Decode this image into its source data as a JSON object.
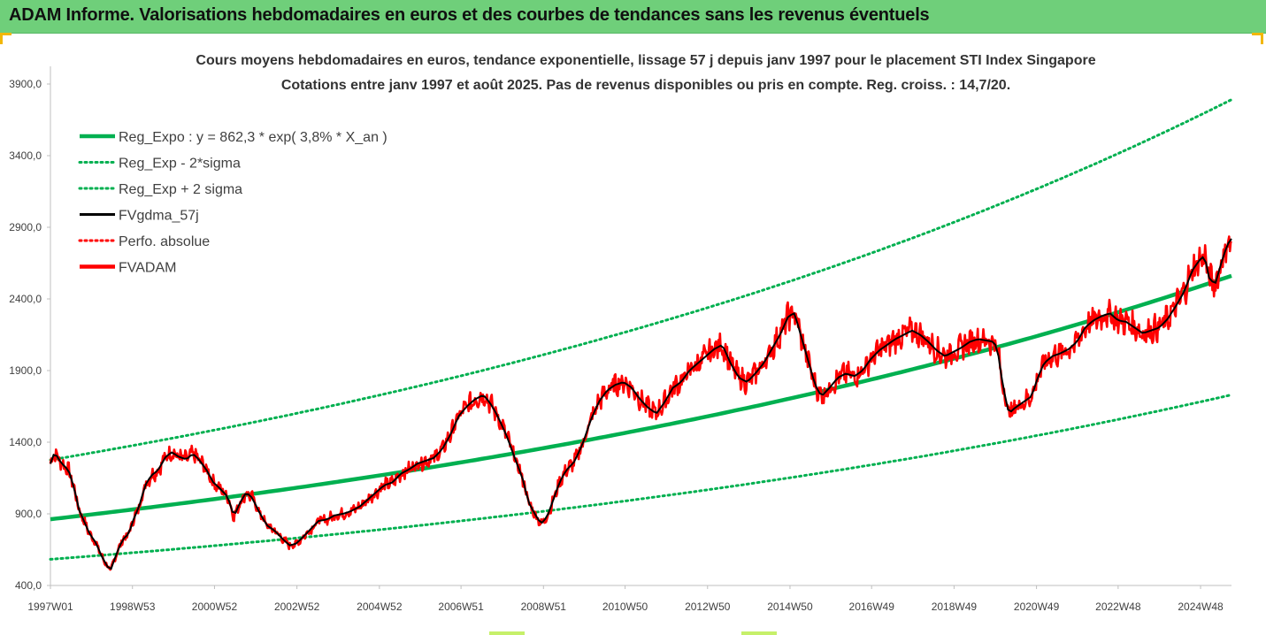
{
  "header": {
    "title": "ADAM Informe. Valorisations hebdomadaires en euros et des courbes de tendances sans les revenus éventuels"
  },
  "chart_data": {
    "type": "line",
    "title": "Cours moyens hebdomadaires en euros, tendance exponentielle, lissage 57 j depuis janv 1997 pour le placement STI Index Singapore",
    "subtitle": "Cotations entre janv 1997 et août 2025. Pas de revenus disponibles ou pris en compte. Reg. croiss. : 14,7/20.",
    "xlabel": "",
    "ylabel": "",
    "ylim": [
      400,
      3900
    ],
    "xlim": [
      1997.0,
      2025.65
    ],
    "yticks": [
      "400,0",
      "900,0",
      "1400,0",
      "1900,0",
      "2400,0",
      "2900,0",
      "3400,0",
      "3900,0"
    ],
    "xticks": [
      {
        "label": "1997W01",
        "x": 1997.0
      },
      {
        "label": "1998W53",
        "x": 1998.99
      },
      {
        "label": "2000W52",
        "x": 2000.98
      },
      {
        "label": "2002W52",
        "x": 2002.98
      },
      {
        "label": "2004W52",
        "x": 2004.98
      },
      {
        "label": "2006W51",
        "x": 2006.96
      },
      {
        "label": "2008W51",
        "x": 2008.96
      },
      {
        "label": "2010W50",
        "x": 2010.94
      },
      {
        "label": "2012W50",
        "x": 2012.94
      },
      {
        "label": "2014W50",
        "x": 2014.94
      },
      {
        "label": "2016W49",
        "x": 2016.92
      },
      {
        "label": "2018W49",
        "x": 2018.92
      },
      {
        "label": "2020W49",
        "x": 2020.92
      },
      {
        "label": "2022W48",
        "x": 2022.9
      },
      {
        "label": "2024W48",
        "x": 2024.9
      }
    ],
    "grid": false,
    "legend_position": "top-left",
    "regression": {
      "a": 862.3,
      "rate": 0.038,
      "sigma_factor": 1.48
    },
    "series": [
      {
        "name": "Reg_Expo : y = 862,3 * exp( 3,8% *  X_an )",
        "color": "#00b050",
        "style": "solid-thick",
        "kind": "reg"
      },
      {
        "name": "Reg_Exp - 2*sigma",
        "color": "#00b050",
        "style": "dotted",
        "kind": "low"
      },
      {
        "name": "Reg_Exp + 2 sigma",
        "color": "#00b050",
        "style": "dotted",
        "kind": "high"
      },
      {
        "name": "FVgdma_57j",
        "color": "#000000",
        "style": "solid",
        "kind": "smooth"
      },
      {
        "name": "Perfo. absolue",
        "color": "#ff0000",
        "style": "dotted",
        "kind": "perf"
      },
      {
        "name": "FVADAM",
        "color": "#ff0000",
        "style": "solid-thick",
        "kind": "price"
      }
    ],
    "price_points": [
      [
        1997.0,
        1250
      ],
      [
        1997.1,
        1330
      ],
      [
        1997.25,
        1260
      ],
      [
        1997.45,
        1200
      ],
      [
        1997.6,
        1050
      ],
      [
        1997.7,
        920
      ],
      [
        1997.8,
        860
      ],
      [
        1997.95,
        760
      ],
      [
        1998.1,
        700
      ],
      [
        1998.25,
        600
      ],
      [
        1998.45,
        500
      ],
      [
        1998.6,
        620
      ],
      [
        1998.75,
        720
      ],
      [
        1998.9,
        760
      ],
      [
        1999.0,
        850
      ],
      [
        1999.15,
        950
      ],
      [
        1999.3,
        1100
      ],
      [
        1999.45,
        1170
      ],
      [
        1999.6,
        1200
      ],
      [
        1999.8,
        1300
      ],
      [
        1999.95,
        1330
      ],
      [
        2000.1,
        1300
      ],
      [
        2000.3,
        1280
      ],
      [
        2000.45,
        1320
      ],
      [
        2000.6,
        1280
      ],
      [
        2000.8,
        1200
      ],
      [
        2000.95,
        1120
      ],
      [
        2001.1,
        1080
      ],
      [
        2001.3,
        1020
      ],
      [
        2001.45,
        880
      ],
      [
        2001.6,
        980
      ],
      [
        2001.75,
        1050
      ],
      [
        2001.9,
        1010
      ],
      [
        2002.05,
        920
      ],
      [
        2002.25,
        820
      ],
      [
        2002.45,
        780
      ],
      [
        2002.65,
        720
      ],
      [
        2002.8,
        680
      ],
      [
        2002.95,
        690
      ],
      [
        2003.1,
        730
      ],
      [
        2003.3,
        790
      ],
      [
        2003.5,
        850
      ],
      [
        2003.7,
        860
      ],
      [
        2003.9,
        890
      ],
      [
        2004.1,
        900
      ],
      [
        2004.3,
        920
      ],
      [
        2004.5,
        950
      ],
      [
        2004.7,
        1000
      ],
      [
        2004.9,
        1050
      ],
      [
        2005.1,
        1100
      ],
      [
        2005.3,
        1120
      ],
      [
        2005.5,
        1180
      ],
      [
        2005.7,
        1210
      ],
      [
        2005.9,
        1250
      ],
      [
        2006.1,
        1270
      ],
      [
        2006.3,
        1290
      ],
      [
        2006.5,
        1350
      ],
      [
        2006.7,
        1450
      ],
      [
        2006.9,
        1580
      ],
      [
        2007.1,
        1650
      ],
      [
        2007.3,
        1700
      ],
      [
        2007.5,
        1730
      ],
      [
        2007.65,
        1680
      ],
      [
        2007.8,
        1610
      ],
      [
        2007.95,
        1520
      ],
      [
        2008.1,
        1420
      ],
      [
        2008.25,
        1300
      ],
      [
        2008.45,
        1150
      ],
      [
        2008.6,
        980
      ],
      [
        2008.75,
        900
      ],
      [
        2008.9,
        830
      ],
      [
        2009.05,
        880
      ],
      [
        2009.2,
        1000
      ],
      [
        2009.35,
        1120
      ],
      [
        2009.5,
        1200
      ],
      [
        2009.7,
        1260
      ],
      [
        2009.9,
        1380
      ],
      [
        2010.1,
        1550
      ],
      [
        2010.3,
        1680
      ],
      [
        2010.5,
        1760
      ],
      [
        2010.7,
        1800
      ],
      [
        2010.9,
        1820
      ],
      [
        2011.1,
        1780
      ],
      [
        2011.3,
        1700
      ],
      [
        2011.5,
        1640
      ],
      [
        2011.7,
        1600
      ],
      [
        2011.9,
        1680
      ],
      [
        2012.1,
        1780
      ],
      [
        2012.3,
        1820
      ],
      [
        2012.5,
        1900
      ],
      [
        2012.7,
        1950
      ],
      [
        2012.9,
        2000
      ],
      [
        2013.1,
        2050
      ],
      [
        2013.3,
        2080
      ],
      [
        2013.5,
        1950
      ],
      [
        2013.7,
        1850
      ],
      [
        2013.9,
        1820
      ],
      [
        2014.1,
        1880
      ],
      [
        2014.3,
        1950
      ],
      [
        2014.5,
        2050
      ],
      [
        2014.7,
        2150
      ],
      [
        2014.9,
        2280
      ],
      [
        2015.05,
        2300
      ],
      [
        2015.2,
        2150
      ],
      [
        2015.4,
        1950
      ],
      [
        2015.55,
        1800
      ],
      [
        2015.7,
        1720
      ],
      [
        2015.9,
        1780
      ],
      [
        2016.1,
        1850
      ],
      [
        2016.3,
        1880
      ],
      [
        2016.5,
        1860
      ],
      [
        2016.7,
        1900
      ],
      [
        2016.9,
        1980
      ],
      [
        2017.1,
        2040
      ],
      [
        2017.3,
        2080
      ],
      [
        2017.5,
        2120
      ],
      [
        2017.7,
        2150
      ],
      [
        2017.9,
        2180
      ],
      [
        2018.1,
        2150
      ],
      [
        2018.3,
        2100
      ],
      [
        2018.5,
        2040
      ],
      [
        2018.7,
        2000
      ],
      [
        2018.9,
        2030
      ],
      [
        2019.1,
        2060
      ],
      [
        2019.3,
        2100
      ],
      [
        2019.5,
        2120
      ],
      [
        2019.7,
        2110
      ],
      [
        2019.9,
        2100
      ],
      [
        2020.0,
        2000
      ],
      [
        2020.1,
        1800
      ],
      [
        2020.25,
        1600
      ],
      [
        2020.4,
        1640
      ],
      [
        2020.6,
        1680
      ],
      [
        2020.8,
        1720
      ],
      [
        2020.95,
        1850
      ],
      [
        2021.1,
        1950
      ],
      [
        2021.3,
        2000
      ],
      [
        2021.5,
        2020
      ],
      [
        2021.7,
        2050
      ],
      [
        2021.9,
        2100
      ],
      [
        2022.1,
        2200
      ],
      [
        2022.3,
        2250
      ],
      [
        2022.5,
        2280
      ],
      [
        2022.7,
        2300
      ],
      [
        2022.9,
        2250
      ],
      [
        2023.1,
        2240
      ],
      [
        2023.3,
        2200
      ],
      [
        2023.5,
        2160
      ],
      [
        2023.7,
        2180
      ],
      [
        2023.9,
        2200
      ],
      [
        2024.1,
        2260
      ],
      [
        2024.3,
        2350
      ],
      [
        2024.5,
        2450
      ],
      [
        2024.7,
        2600
      ],
      [
        2024.9,
        2680
      ],
      [
        2025.0,
        2700
      ],
      [
        2025.1,
        2550
      ],
      [
        2025.25,
        2500
      ],
      [
        2025.4,
        2650
      ],
      [
        2025.55,
        2780
      ],
      [
        2025.65,
        2820
      ]
    ]
  },
  "colors": {
    "banner": "#6fcf7a",
    "regression": "#00b050",
    "price": "#ff0000",
    "smooth": "#000000",
    "corner_accent": "#f2b705"
  }
}
